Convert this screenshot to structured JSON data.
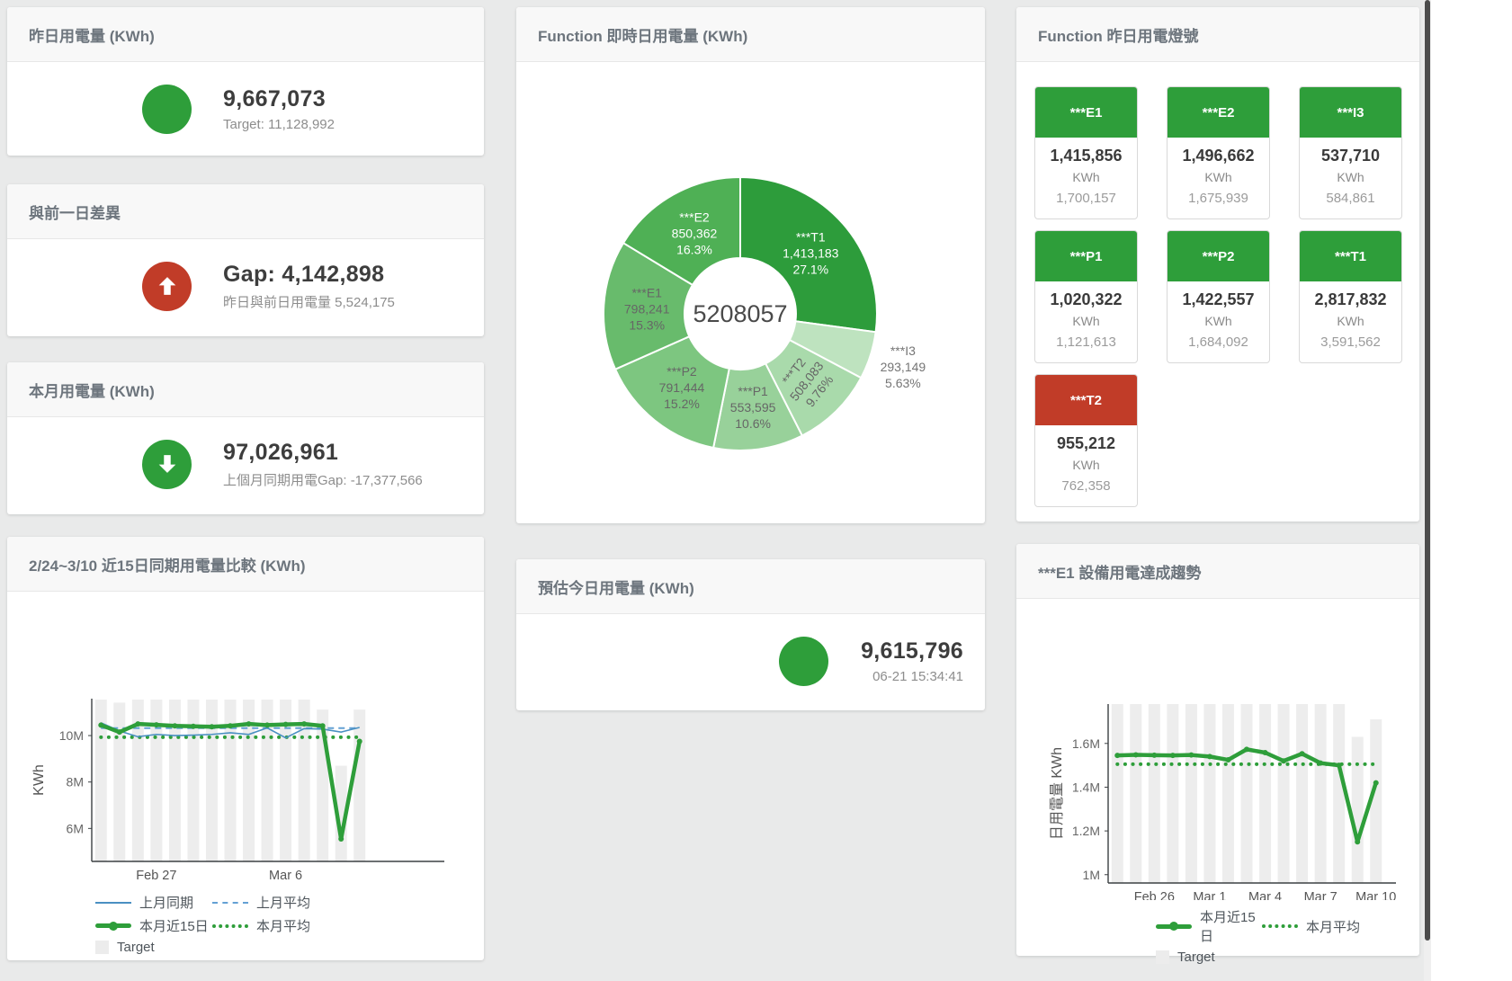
{
  "colors": {
    "green": "#2e9e3a",
    "red": "#c13c28",
    "bar_gray": "#ededed",
    "blue": "#4a90c2",
    "blue_dash": "#64a1d4"
  },
  "left_column": {
    "yesterday_card": {
      "title": "昨日用電量 (KWh)",
      "value": "9,667,073",
      "subtitle": "Target: 11,128,992",
      "status": "green"
    },
    "gap_card": {
      "title": "與前一日差異",
      "value": "Gap: 4,142,898",
      "subtitle": "昨日與前日用電量 5,524,175",
      "status": "red",
      "arrow": "up"
    },
    "month_card": {
      "title": "本月用電量 (KWh)",
      "value": "97,026,961",
      "subtitle": "上個月同期用電Gap: -17,377,566",
      "status": "green",
      "arrow": "down"
    },
    "compare_card": {
      "title": "2/24~3/10 近15日同期用電量比較 (KWh)"
    }
  },
  "middle_column": {
    "realtime_card": {
      "title": "Function 即時日用電量 (KWh)"
    },
    "forecast_card": {
      "title": "預估今日用電量 (KWh)",
      "value": "9,615,796",
      "subtitle": "06-21 15:34:41",
      "status": "green"
    }
  },
  "right_column": {
    "lights_card": {
      "title": "Function 昨日用電燈號",
      "tiles": [
        {
          "name": "***E1",
          "value": "1,415,856",
          "unit": "KWh",
          "target": "1,700,157",
          "status": "green"
        },
        {
          "name": "***E2",
          "value": "1,496,662",
          "unit": "KWh",
          "target": "1,675,939",
          "status": "green"
        },
        {
          "name": "***I3",
          "value": "537,710",
          "unit": "KWh",
          "target": "584,861",
          "status": "green"
        },
        {
          "name": "***P1",
          "value": "1,020,322",
          "unit": "KWh",
          "target": "1,121,613",
          "status": "green"
        },
        {
          "name": "***P2",
          "value": "1,422,557",
          "unit": "KWh",
          "target": "1,684,092",
          "status": "green"
        },
        {
          "name": "***T1",
          "value": "2,817,832",
          "unit": "KWh",
          "target": "3,591,562",
          "status": "green"
        },
        {
          "name": "***T2",
          "value": "955,212",
          "unit": "KWh",
          "target": "762,358",
          "status": "red"
        }
      ]
    },
    "trend_card": {
      "title": "***E1 設備用電達成趨勢"
    }
  },
  "chart_data": [
    {
      "id": "donut",
      "type": "pie",
      "title": "Function 即時日用電量 (KWh)",
      "center_label": "5208057",
      "slices": [
        {
          "name": "***T1",
          "value": 1413183,
          "value_label": "1,413,183",
          "pct_label": "27.1%",
          "color": "#2d9c3b",
          "label_color": "#ffffff",
          "inside": true,
          "rotate": 0
        },
        {
          "name": "***I3",
          "value": 293149,
          "value_label": "293,149",
          "pct_label": "5.63%",
          "color": "#bee3bf",
          "label_color": "#757575",
          "inside": false,
          "rotate": 0
        },
        {
          "name": "***T2",
          "value": 508083,
          "value_label": "508,083",
          "pct_label": "9.76%",
          "color": "#a9daab",
          "label_color": "#666666",
          "inside": true,
          "rotate": -52
        },
        {
          "name": "***P1",
          "value": 553595,
          "value_label": "553,595",
          "pct_label": "10.6%",
          "color": "#98d19a",
          "label_color": "#666666",
          "inside": true,
          "rotate": 0
        },
        {
          "name": "***P2",
          "value": 791444,
          "value_label": "791,444",
          "pct_label": "15.2%",
          "color": "#7dc680",
          "label_color": "#666666",
          "inside": true,
          "rotate": 0
        },
        {
          "name": "***E1",
          "value": 798241,
          "value_label": "798,241",
          "pct_label": "15.3%",
          "color": "#68bb6c",
          "label_color": "#666666",
          "inside": true,
          "rotate": 0
        },
        {
          "name": "***E2",
          "value": 850362,
          "value_label": "850,362",
          "pct_label": "16.3%",
          "color": "#4fb055",
          "label_color": "#ffffff",
          "inside": true,
          "rotate": 0
        }
      ]
    },
    {
      "id": "compare",
      "type": "line",
      "title": "2/24~3/10 近15日同期用電量比較 (KWh)",
      "ylabel": "KWh",
      "ylim": [
        4.58,
        11.59
      ],
      "yticks": [
        {
          "v": 6,
          "label": "6M"
        },
        {
          "v": 8,
          "label": "8M"
        },
        {
          "v": 10,
          "label": "10M"
        }
      ],
      "categories": [
        "2/24",
        "2/25",
        "2/26",
        "2/27",
        "2/28",
        "3/1",
        "3/2",
        "3/3",
        "3/4",
        "3/5",
        "3/6",
        "3/7",
        "3/8",
        "3/9",
        "3/10"
      ],
      "xticks": [
        {
          "i": 3,
          "label": "Feb 27"
        },
        {
          "i": 10,
          "label": "Mar 6"
        }
      ],
      "target_bars": [
        11.55,
        11.42,
        11.55,
        11.55,
        11.55,
        11.55,
        11.55,
        11.55,
        11.55,
        11.55,
        11.55,
        11.55,
        11.12,
        8.7,
        11.12
      ],
      "series": [
        {
          "name": "上月同期",
          "style": "line",
          "color": "#4a90c2",
          "values": [
            10.55,
            10.2,
            9.95,
            10.05,
            10.0,
            10.02,
            10.05,
            10.12,
            10.05,
            10.33,
            9.9,
            10.3,
            10.28,
            10.15,
            10.35
          ]
        },
        {
          "name": "上月平均",
          "style": "dash",
          "color": "#64a1d4",
          "values": 10.32
        },
        {
          "name": "本月近15日",
          "style": "thick",
          "color": "#2e9e3a",
          "values": [
            10.45,
            10.15,
            10.5,
            10.46,
            10.42,
            10.4,
            10.38,
            10.42,
            10.5,
            10.45,
            10.48,
            10.5,
            10.42,
            5.55,
            9.75
          ]
        },
        {
          "name": "本月平均",
          "style": "dots",
          "color": "#2e9e3a",
          "values": 9.93
        }
      ],
      "legend": [
        {
          "style": "line",
          "color": "#4a90c2",
          "label": "上月同期"
        },
        {
          "style": "dash",
          "color": "#64a1d4",
          "label": "上月平均"
        },
        {
          "style": "thick",
          "color": "#2e9e3a",
          "label": "本月近15日"
        },
        {
          "style": "dots",
          "color": "#2e9e3a",
          "label": "本月平均"
        },
        {
          "style": "square",
          "color": "#ececec",
          "label": "Target"
        }
      ]
    },
    {
      "id": "trend",
      "type": "line",
      "title": "***E1 設備用電達成趨勢",
      "ylabel": "日用電量 KWh",
      "ylim": [
        0.962,
        1.78
      ],
      "yticks": [
        {
          "v": 1,
          "label": "1M"
        },
        {
          "v": 1.2,
          "label": "1.2M"
        },
        {
          "v": 1.4,
          "label": "1.4M"
        },
        {
          "v": 1.6,
          "label": "1.6M"
        }
      ],
      "categories": [
        "2/24",
        "2/25",
        "2/26",
        "2/27",
        "2/28",
        "3/1",
        "3/2",
        "3/3",
        "3/4",
        "3/5",
        "3/6",
        "3/7",
        "3/8",
        "3/9",
        "3/10"
      ],
      "xticks": [
        {
          "i": 2,
          "label": "Feb 26"
        },
        {
          "i": 5,
          "label": "Mar 1"
        },
        {
          "i": 8,
          "label": "Mar 4"
        },
        {
          "i": 11,
          "label": "Mar 7"
        },
        {
          "i": 14,
          "label": "Mar 10"
        }
      ],
      "target_bars": [
        1.78,
        1.78,
        1.78,
        1.78,
        1.78,
        1.78,
        1.78,
        1.78,
        1.78,
        1.78,
        1.78,
        1.78,
        1.78,
        1.63,
        1.71
      ],
      "series": [
        {
          "name": "本月近15日",
          "style": "thick",
          "color": "#2e9e3a",
          "values": [
            1.545,
            1.548,
            1.546,
            1.545,
            1.547,
            1.54,
            1.525,
            1.573,
            1.558,
            1.52,
            1.553,
            1.51,
            1.5,
            1.15,
            1.42
          ]
        },
        {
          "name": "本月平均",
          "style": "dots",
          "color": "#2e9e3a",
          "values": 1.505
        }
      ],
      "legend": [
        {
          "style": "thick",
          "color": "#2e9e3a",
          "label": "本月近15日"
        },
        {
          "style": "dots",
          "color": "#2e9e3a",
          "label": "本月平均"
        },
        {
          "style": "square",
          "color": "#ececec",
          "label": "Target"
        }
      ]
    }
  ]
}
